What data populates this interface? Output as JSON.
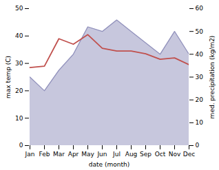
{
  "chart_data": {
    "type": "line",
    "categories": [
      "Jan",
      "Feb",
      "Mar",
      "Apr",
      "May",
      "Jun",
      "Jul",
      "Aug",
      "Sep",
      "Oct",
      "Nov",
      "Dec"
    ],
    "series": [
      {
        "type": "area",
        "axis": "y2",
        "color": "#9090bb",
        "values": [
          30,
          24,
          33,
          40,
          52,
          50,
          55,
          50,
          45,
          40,
          50,
          40
        ]
      },
      {
        "type": "line",
        "color": "#c0504d",
        "values": [
          28.5,
          29.0,
          39.0,
          37.0,
          40.5,
          35.5,
          34.5,
          34.5,
          33.5,
          31.5,
          32.0,
          29.5
        ]
      }
    ],
    "xlabel": "date (month)",
    "ylabel": "max temp (C)",
    "y2label": "med. precipitation (kg/m2)",
    "ylim": [
      0,
      50
    ],
    "yticks": [
      0,
      10,
      20,
      30,
      40,
      50
    ],
    "y2lim": [
      0,
      60
    ],
    "y2ticks": [
      0,
      10,
      20,
      30,
      40,
      50,
      60
    ],
    "grid": false
  }
}
